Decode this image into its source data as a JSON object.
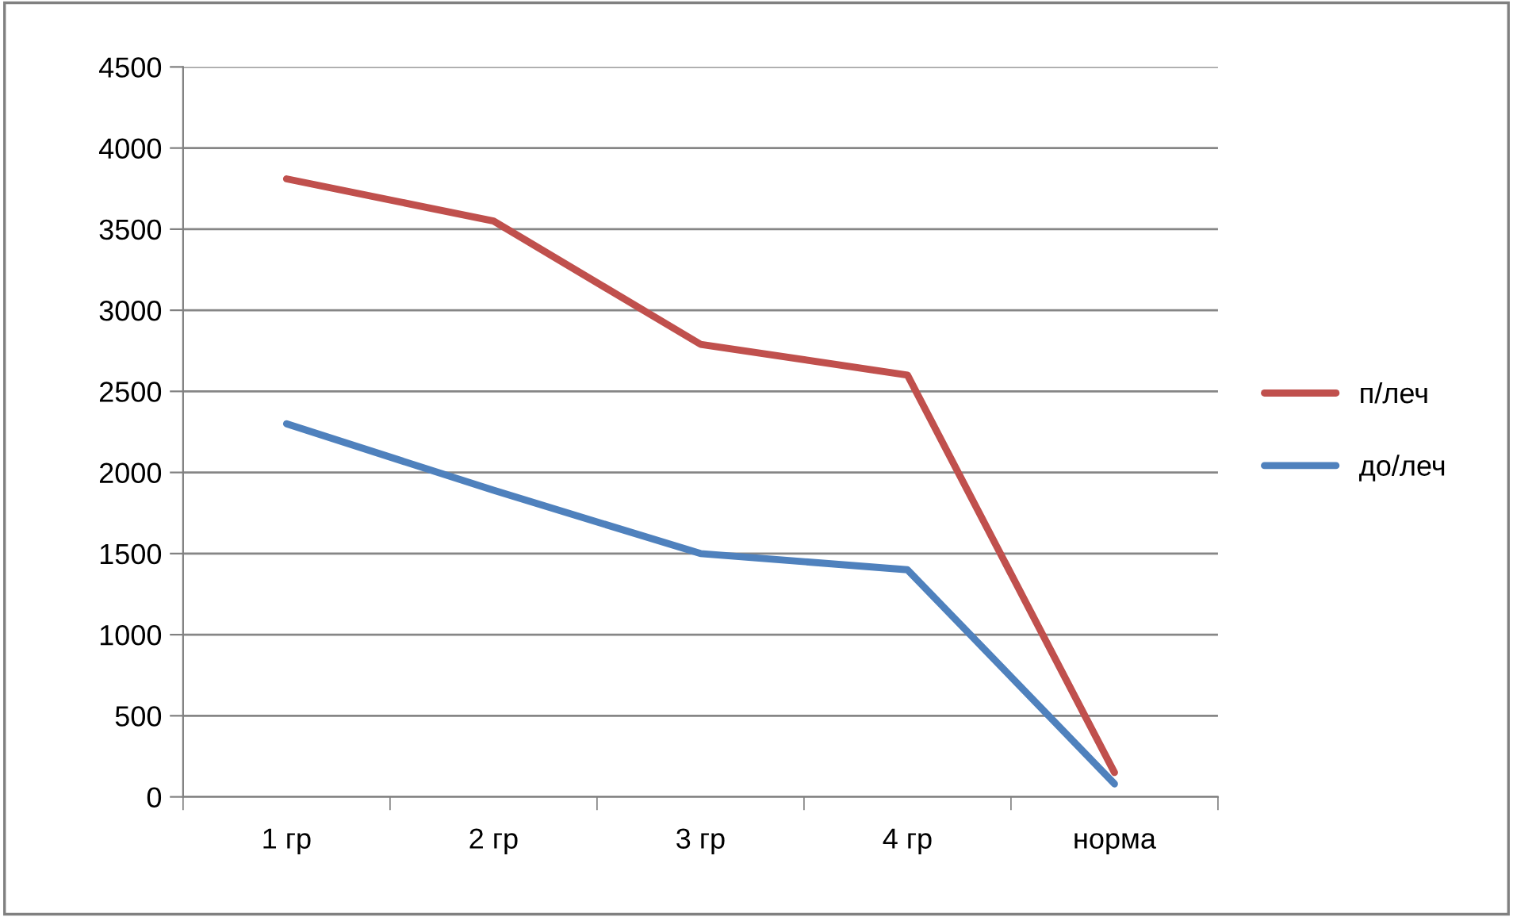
{
  "chart_data": {
    "type": "line",
    "categories": [
      "1 гр",
      "2 гр",
      "3 гр",
      "4 гр",
      "норма"
    ],
    "series": [
      {
        "name": "п/леч",
        "color": "#c0504d",
        "values": [
          3810,
          3550,
          2790,
          2600,
          150
        ]
      },
      {
        "name": "до/леч",
        "color": "#4f81bd",
        "values": [
          2300,
          1890,
          1500,
          1400,
          80
        ]
      }
    ],
    "ylim": [
      0,
      4500
    ],
    "yticks": [
      0,
      500,
      1000,
      1500,
      2000,
      2500,
      3000,
      3500,
      4000,
      4500
    ],
    "grid": "y",
    "legend": "right",
    "marker": "none",
    "line_style": "solid"
  }
}
